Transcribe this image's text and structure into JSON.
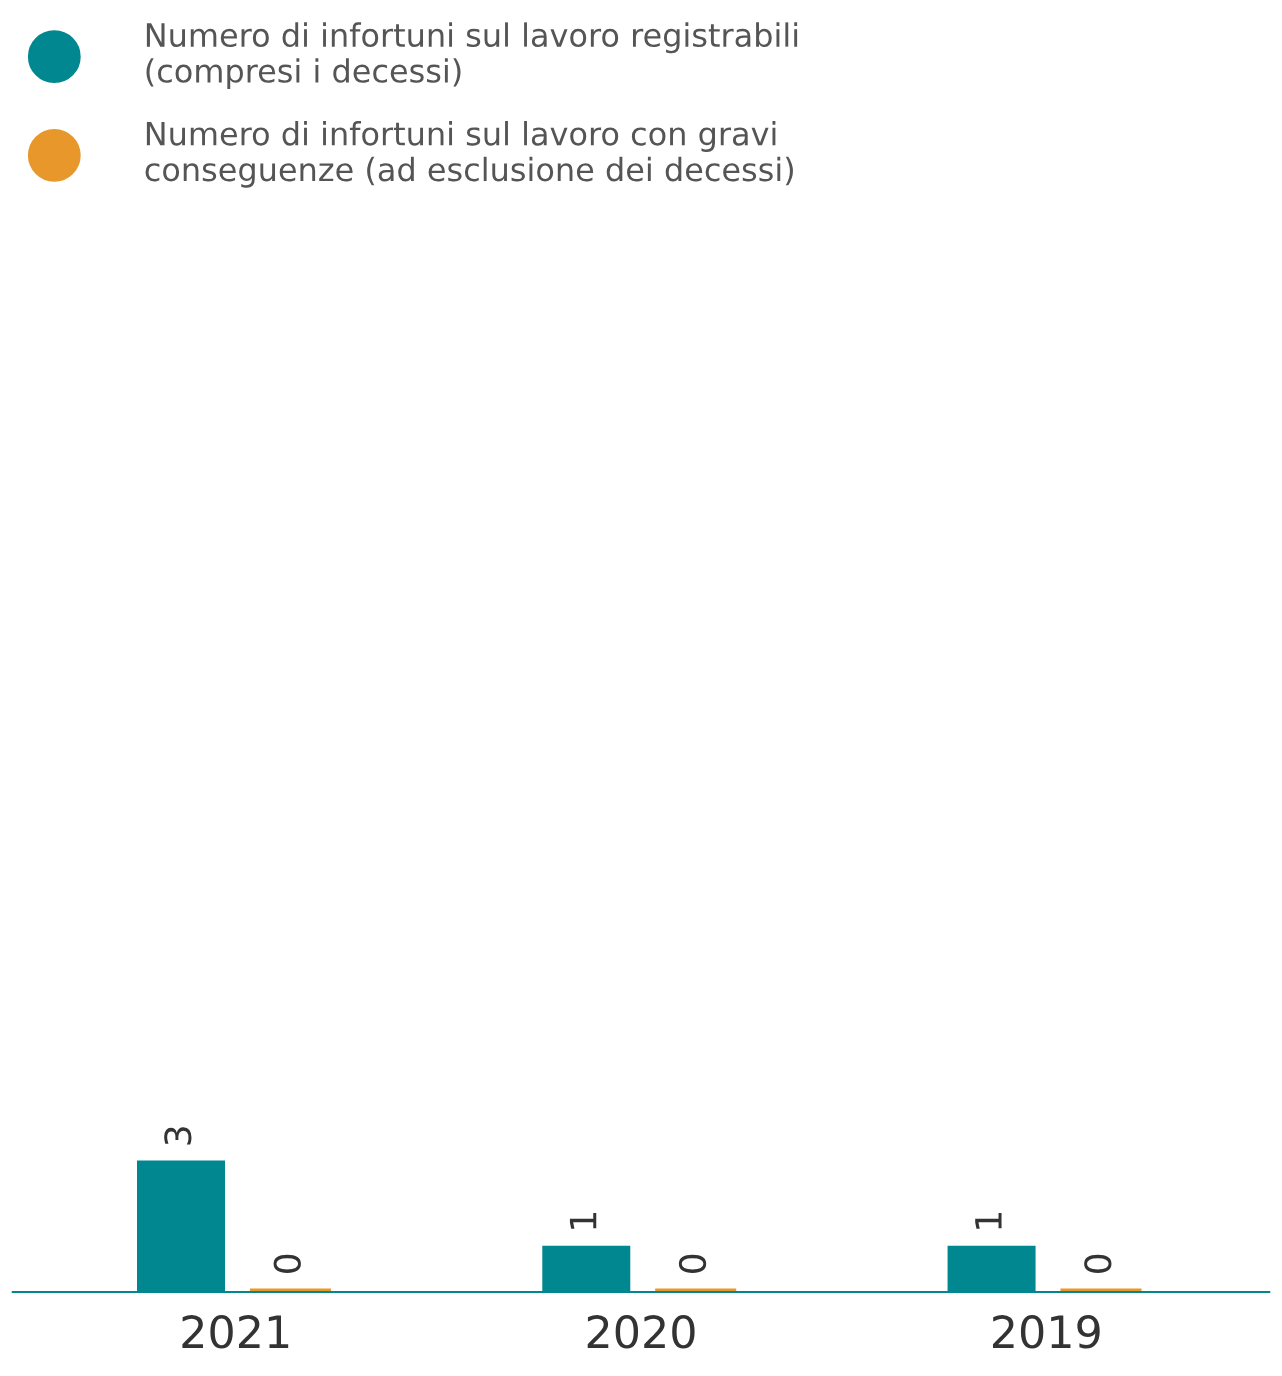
{
  "chart_data": {
    "type": "bar",
    "categories": [
      "2021",
      "2020",
      "2019"
    ],
    "series": [
      {
        "name": "Numero di infortuni sul lavoro registrabili\n(compresi i decessi)",
        "color": "#00878f",
        "values": [
          3,
          1,
          1
        ]
      },
      {
        "name": "Numero di infortuni sul lavoro con gravi\nconseguenze (ad esclusione dei decessi)",
        "color": "#e8982a",
        "values": [
          0,
          0,
          0
        ]
      }
    ],
    "data_labels": true,
    "legend": "top left",
    "grid": false
  }
}
